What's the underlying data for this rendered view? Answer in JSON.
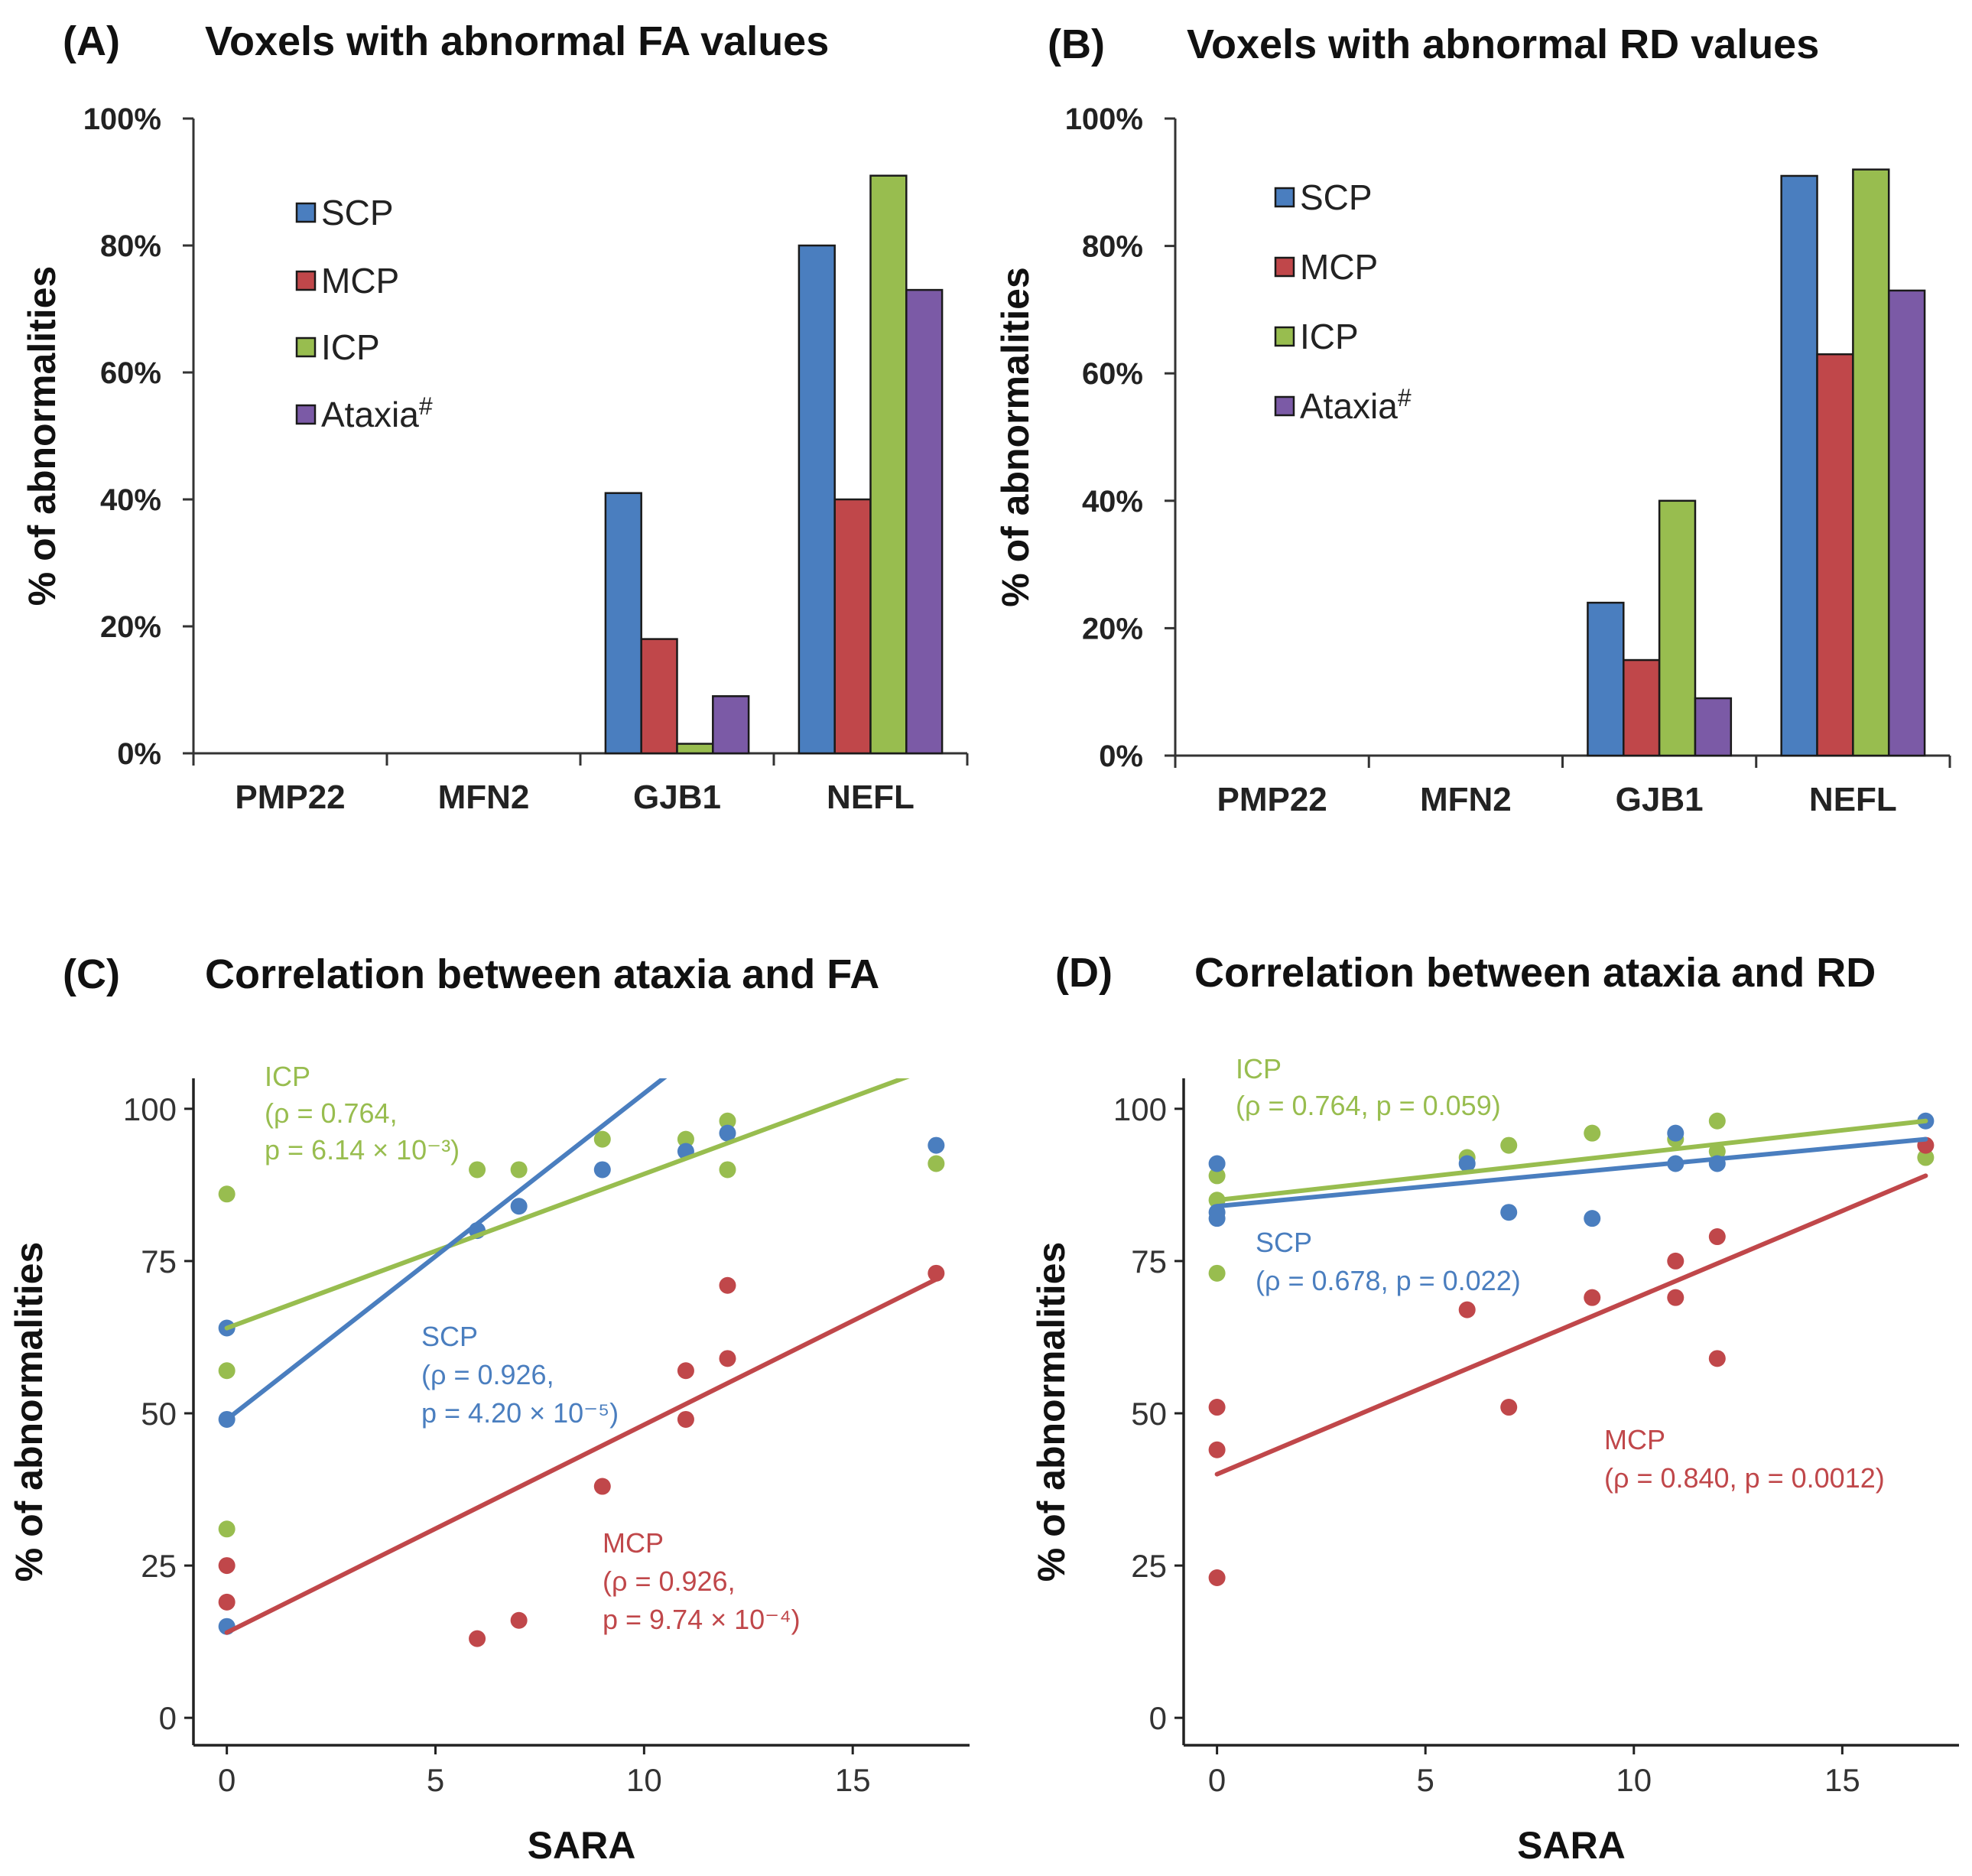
{
  "colors": {
    "SCP": "#4a7ebf",
    "MCP": "#c0474a",
    "ICP": "#98bd4f",
    "Ataxia": "#7b5aa6"
  },
  "chart_data": [
    {
      "panel": "(A)",
      "type": "bar",
      "title": "Voxels with abnormal FA values",
      "ylabel": "% of abnormalities",
      "ylim": [
        0,
        100
      ],
      "yticks": [
        "0%",
        "20%",
        "40%",
        "60%",
        "80%",
        "100%"
      ],
      "categories": [
        "PMP22",
        "MFN2",
        "GJB1",
        "NEFL"
      ],
      "series": [
        {
          "name": "SCP",
          "legend": "SCP",
          "values": [
            0,
            0,
            41,
            80
          ]
        },
        {
          "name": "MCP",
          "legend": "MCP",
          "values": [
            0,
            0,
            18,
            40
          ]
        },
        {
          "name": "ICP",
          "legend": "ICP",
          "values": [
            0,
            0,
            1.5,
            91
          ]
        },
        {
          "name": "Ataxia",
          "legend": "Ataxia",
          "legend_sup": "#",
          "values": [
            0,
            0,
            9,
            73
          ]
        }
      ]
    },
    {
      "panel": "(B)",
      "type": "bar",
      "title": "Voxels with abnormal RD values",
      "ylabel": "% of abnormalities",
      "ylim": [
        0,
        100
      ],
      "yticks": [
        "0%",
        "20%",
        "40%",
        "60%",
        "80%",
        "100%"
      ],
      "categories": [
        "PMP22",
        "MFN2",
        "GJB1",
        "NEFL"
      ],
      "series": [
        {
          "name": "SCP",
          "legend": "SCP",
          "values": [
            0,
            0,
            24,
            91
          ]
        },
        {
          "name": "MCP",
          "legend": "MCP",
          "values": [
            0,
            0,
            15,
            63
          ]
        },
        {
          "name": "ICP",
          "legend": "ICP",
          "values": [
            0,
            0,
            40,
            92
          ]
        },
        {
          "name": "Ataxia",
          "legend": "Ataxia",
          "legend_sup": "#",
          "values": [
            0,
            0,
            9,
            73
          ]
        }
      ]
    },
    {
      "panel": "(C)",
      "type": "scatter",
      "title": "Correlation between ataxia and FA",
      "xlabel": "SARA",
      "ylabel": "% of abnormalities",
      "xlim": [
        -0.8,
        17.8
      ],
      "ylim": [
        -4.5,
        105
      ],
      "xticks": [
        0,
        5,
        10,
        15
      ],
      "yticks": [
        0,
        25,
        50,
        75,
        100
      ],
      "series": [
        {
          "name": "ICP",
          "points": [
            [
              0,
              86
            ],
            [
              0,
              57
            ],
            [
              0,
              31
            ],
            [
              6,
              90
            ],
            [
              7,
              90
            ],
            [
              9,
              95
            ],
            [
              11,
              95
            ],
            [
              12,
              98
            ],
            [
              12,
              90
            ],
            [
              17,
              91
            ]
          ],
          "fit": [
            [
              0,
              64
            ],
            [
              17,
              107
            ]
          ],
          "annotation": [
            "ICP",
            "(ρ = 0.764,",
            "p = 6.14 × 10⁻³)"
          ]
        },
        {
          "name": "SCP",
          "points": [
            [
              0,
              64
            ],
            [
              0,
              49
            ],
            [
              0,
              15
            ],
            [
              6,
              80
            ],
            [
              7,
              84
            ],
            [
              9,
              90
            ],
            [
              11,
              93
            ],
            [
              12,
              96
            ],
            [
              17,
              94
            ]
          ],
          "fit": [
            [
              0,
              49
            ],
            [
              17,
              140
            ]
          ],
          "annotation": [
            "SCP",
            "(ρ = 0.926,",
            "p = 4.20 × 10⁻⁵)"
          ]
        },
        {
          "name": "MCP",
          "points": [
            [
              0,
              25
            ],
            [
              0,
              19
            ],
            [
              6,
              13
            ],
            [
              7,
              16
            ],
            [
              9,
              38
            ],
            [
              11,
              57
            ],
            [
              11,
              49
            ],
            [
              12,
              71
            ],
            [
              12,
              59
            ],
            [
              17,
              73
            ]
          ],
          "fit": [
            [
              0,
              14
            ],
            [
              17,
              72
            ]
          ],
          "annotation": [
            "MCP",
            "(ρ = 0.926,",
            "p = 9.74 × 10⁻⁴)"
          ]
        }
      ]
    },
    {
      "panel": "(D)",
      "type": "scatter",
      "title": "Correlation between ataxia and RD",
      "xlabel": "SARA",
      "ylabel": "% of abnormalities",
      "xlim": [
        -0.8,
        17.8
      ],
      "ylim": [
        -4.5,
        105
      ],
      "xticks": [
        0,
        5,
        10,
        15
      ],
      "yticks": [
        0,
        25,
        50,
        75,
        100
      ],
      "series": [
        {
          "name": "ICP",
          "points": [
            [
              0,
              89
            ],
            [
              0,
              85
            ],
            [
              0,
              73
            ],
            [
              6,
              92
            ],
            [
              7,
              94
            ],
            [
              9,
              96
            ],
            [
              11,
              95
            ],
            [
              12,
              98
            ],
            [
              12,
              93
            ],
            [
              17,
              92
            ]
          ],
          "fit": [
            [
              0,
              85
            ],
            [
              17,
              98
            ]
          ],
          "annotation": [
            "ICP",
            "(ρ = 0.764, p = 0.059)"
          ]
        },
        {
          "name": "SCP",
          "points": [
            [
              0,
              91
            ],
            [
              0,
              83
            ],
            [
              0,
              82
            ],
            [
              6,
              91
            ],
            [
              7,
              83
            ],
            [
              9,
              82
            ],
            [
              11,
              96
            ],
            [
              11,
              91
            ],
            [
              12,
              91
            ],
            [
              17,
              98
            ]
          ],
          "fit": [
            [
              0,
              84
            ],
            [
              17,
              95
            ]
          ],
          "annotation": [
            "SCP",
            "(ρ = 0.678, p = 0.022)"
          ]
        },
        {
          "name": "MCP",
          "points": [
            [
              0,
              51
            ],
            [
              0,
              44
            ],
            [
              0,
              23
            ],
            [
              6,
              67
            ],
            [
              7,
              51
            ],
            [
              9,
              69
            ],
            [
              11,
              75
            ],
            [
              11,
              69
            ],
            [
              12,
              79
            ],
            [
              12,
              59
            ],
            [
              17,
              94
            ]
          ],
          "fit": [
            [
              0,
              40
            ],
            [
              17,
              89
            ]
          ],
          "annotation": [
            "MCP",
            "(ρ = 0.840, p = 0.0012)"
          ]
        }
      ]
    }
  ]
}
